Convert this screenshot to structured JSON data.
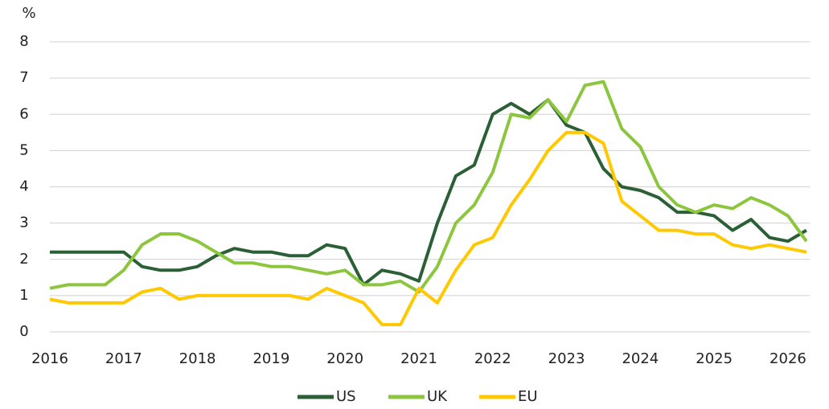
{
  "chart_data": {
    "type": "line",
    "y_label": "%",
    "x": [
      2016,
      2016.25,
      2016.5,
      2016.75,
      2017,
      2017.25,
      2017.5,
      2017.75,
      2018,
      2018.25,
      2018.5,
      2018.75,
      2019,
      2019.25,
      2019.5,
      2019.75,
      2020,
      2020.25,
      2020.5,
      2020.75,
      2021,
      2021.25,
      2021.5,
      2021.75,
      2022,
      2022.25,
      2022.5,
      2022.75,
      2023,
      2023.25,
      2023.5,
      2023.75,
      2024,
      2024.25,
      2024.5,
      2024.75,
      2025,
      2025.25,
      2025.5,
      2025.75,
      2026,
      2026.25
    ],
    "series": [
      {
        "name": "US",
        "color": "#2b5f35",
        "values": [
          2.2,
          2.2,
          2.2,
          2.2,
          2.2,
          1.8,
          1.7,
          1.7,
          1.8,
          2.1,
          2.3,
          2.2,
          2.2,
          2.1,
          2.1,
          2.4,
          2.3,
          1.3,
          1.7,
          1.6,
          1.4,
          3.0,
          4.3,
          4.6,
          6.0,
          6.3,
          6.0,
          6.4,
          5.7,
          5.5,
          4.5,
          4.0,
          3.9,
          3.7,
          3.3,
          3.3,
          3.2,
          2.8,
          3.1,
          2.6,
          2.5,
          2.8
        ]
      },
      {
        "name": "UK",
        "color": "#8cc63f",
        "values": [
          1.2,
          1.3,
          1.3,
          1.3,
          1.7,
          2.4,
          2.7,
          2.7,
          2.5,
          2.2,
          1.9,
          1.9,
          1.8,
          1.8,
          1.7,
          1.6,
          1.7,
          1.3,
          1.3,
          1.4,
          1.1,
          1.8,
          3.0,
          3.5,
          4.4,
          6.0,
          5.9,
          6.4,
          5.8,
          6.8,
          6.9,
          5.6,
          5.1,
          4.0,
          3.5,
          3.3,
          3.5,
          3.4,
          3.7,
          3.5,
          3.2,
          2.5
        ]
      },
      {
        "name": "EU",
        "color": "#ffc800",
        "values": [
          0.9,
          0.8,
          0.8,
          0.8,
          0.8,
          1.1,
          1.2,
          0.9,
          1.0,
          1.0,
          1.0,
          1.0,
          1.0,
          1.0,
          0.9,
          1.2,
          1.0,
          0.8,
          0.2,
          0.2,
          1.2,
          0.8,
          1.7,
          2.4,
          2.6,
          3.5,
          4.2,
          5.0,
          5.5,
          5.5,
          5.2,
          3.6,
          3.2,
          2.8,
          2.8,
          2.7,
          2.7,
          2.4,
          2.3,
          2.4,
          2.3,
          2.2
        ]
      }
    ],
    "xlim": [
      2016,
      2026.3
    ],
    "xticks": [
      2016,
      2017,
      2018,
      2019,
      2020,
      2021,
      2022,
      2023,
      2024,
      2025,
      2026
    ],
    "ylim": [
      0,
      8
    ],
    "yticks": [
      0,
      1,
      2,
      3,
      4,
      5,
      6,
      7,
      8
    ],
    "grid": true,
    "legend": "bottom"
  }
}
